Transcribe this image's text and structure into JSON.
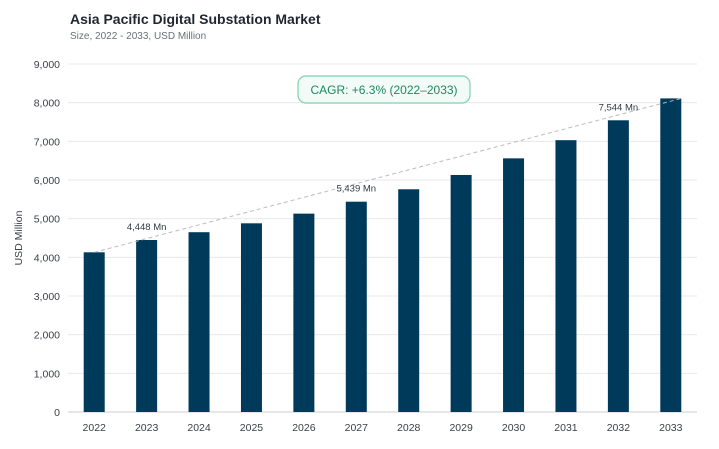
{
  "chart_data": {
    "type": "bar",
    "title": "Asia Pacific Digital Substation Market",
    "subtitle": "Size, 2022 - 2033, USD Million",
    "xlabel": "",
    "ylabel": "USD Million",
    "categories": [
      "2022",
      "2023",
      "2024",
      "2025",
      "2026",
      "2027",
      "2028",
      "2029",
      "2030",
      "2031",
      "2032",
      "2033"
    ],
    "values": [
      4130,
      4448,
      4650,
      4880,
      5130,
      5439,
      5760,
      6130,
      6560,
      7030,
      7544,
      8110
    ],
    "ylim": [
      0,
      9000
    ],
    "yticks": [
      0,
      1000,
      2000,
      3000,
      4000,
      5000,
      6000,
      7000,
      8000,
      9000
    ],
    "ytick_labels": [
      "0",
      "1,000",
      "2,000",
      "3,000",
      "4,000",
      "5,000",
      "6,000",
      "7,000",
      "8,000",
      "9,000"
    ],
    "data_labels": [
      {
        "index": 1,
        "text": "4,448 Mn"
      },
      {
        "index": 5,
        "text": "5,439 Mn"
      },
      {
        "index": 10,
        "text": "7,544 Mn"
      }
    ],
    "annotation": "CAGR: +6.3% (2022–2033)",
    "grid": true,
    "colors": {
      "bar": "#003a5a",
      "grid": "#e6e8eb",
      "trend": "#b9bcc1",
      "cagr_border": "#7fd1ad",
      "cagr_fill": "#f2fbf7",
      "cagr_text": "#1c8a5e"
    }
  }
}
